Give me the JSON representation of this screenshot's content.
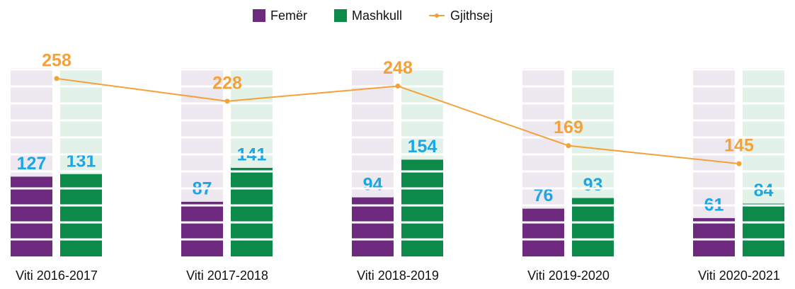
{
  "chart_data": {
    "type": "bar",
    "categories": [
      "Viti 2016-2017",
      "Viti 2017-2018",
      "Viti 2018-2019",
      "Viti 2019-2020",
      "Viti 2020-2021"
    ],
    "series": [
      {
        "name": "Femër",
        "color": "#6e2a7e",
        "values": [
          127,
          87,
          94,
          76,
          61
        ]
      },
      {
        "name": "Mashkull",
        "color": "#0b8a4a",
        "values": [
          131,
          141,
          154,
          93,
          84
        ]
      },
      {
        "name": "Gjithsej",
        "color": "#f5a13a",
        "type": "line",
        "axis": "y2",
        "values": [
          258,
          228,
          248,
          169,
          145
        ]
      }
    ],
    "ylim": [
      0,
      300
    ],
    "y2lim": [
      22,
      272
    ],
    "value_label_color": "#1ba6e6",
    "legend": "top"
  }
}
